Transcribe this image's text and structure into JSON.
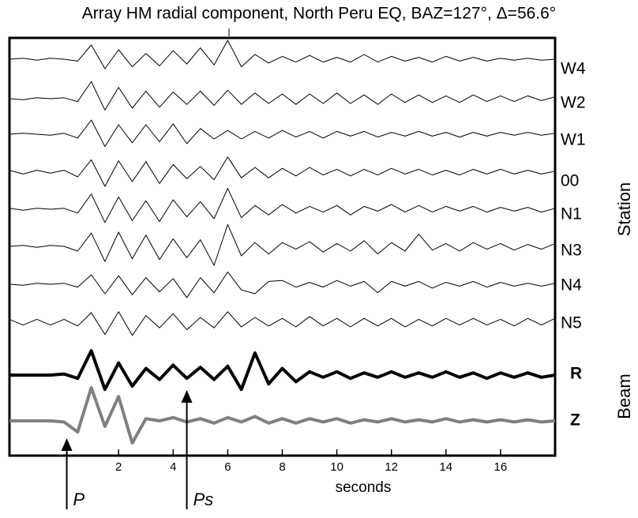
{
  "chart_data": {
    "type": "seismogram",
    "title": "Array HM radial component, North Peru EQ, BAZ=127°, Δ=56.6°",
    "xlabel": "seconds",
    "station_label": "Station",
    "beam_label": "Beam",
    "xlim": [
      -2,
      18
    ],
    "xticks": [
      2,
      4,
      6,
      8,
      10,
      12,
      14,
      16
    ],
    "x": [
      -2,
      -1.5,
      -1,
      -0.5,
      0,
      0.5,
      1,
      1.5,
      2,
      2.5,
      3,
      3.5,
      4,
      4.5,
      5,
      5.5,
      6,
      6.5,
      7,
      7.5,
      8,
      8.5,
      9,
      9.5,
      10,
      10.5,
      11,
      11.5,
      12,
      12.5,
      13,
      13.5,
      14,
      14.5,
      15,
      15.5,
      16,
      16.5,
      17,
      17.5,
      18
    ],
    "series": [
      {
        "name": "W4",
        "color": "#000000",
        "width": 1,
        "values": [
          0,
          0.1,
          -0.1,
          0.1,
          0,
          -0.2,
          1.5,
          -1,
          1,
          -0.8,
          0.6,
          -0.7,
          0.9,
          -0.5,
          1.2,
          -0.6,
          2,
          -0.8,
          0.5,
          -0.4,
          0.3,
          -0.3,
          0.4,
          -0.3,
          0.2,
          -0.3,
          0.5,
          -0.3,
          0.3,
          -0.2,
          0.2,
          -0.3,
          0.3,
          -0.2,
          0.2,
          -0.2,
          0.1,
          -0.1,
          0.1,
          -0.1,
          0
        ]
      },
      {
        "name": "W2",
        "color": "#000000",
        "width": 1,
        "values": [
          0,
          -0.1,
          0.1,
          0,
          0.1,
          -0.3,
          1.8,
          -1.2,
          1.2,
          -1,
          0.8,
          -0.9,
          0.7,
          -0.6,
          0.8,
          -0.7,
          0.9,
          -0.6,
          0.6,
          -0.5,
          0.5,
          -0.6,
          0.5,
          -0.5,
          0.6,
          -0.5,
          0.4,
          -0.6,
          0.5,
          -0.4,
          0.4,
          -0.4,
          0.3,
          -0.4,
          0.4,
          -0.3,
          0.3,
          -0.3,
          0.3,
          -0.2,
          0.2
        ]
      },
      {
        "name": "W1",
        "color": "#000000",
        "width": 1,
        "values": [
          0,
          0.1,
          0,
          -0.1,
          0.1,
          -0.4,
          1.5,
          -1.3,
          1,
          -0.9,
          1,
          -0.8,
          1.1,
          -1,
          0.6,
          -0.5,
          0.4,
          -0.5,
          0.3,
          -0.4,
          0.4,
          -0.3,
          0.3,
          -0.4,
          0.3,
          -0.2,
          0.3,
          -0.3,
          0.2,
          -0.2,
          0.3,
          -0.2,
          0.2,
          -0.3,
          0.2,
          -0.2,
          0.2,
          -0.1,
          0.2,
          -0.1,
          0.1
        ]
      },
      {
        "name": "00",
        "color": "#000000",
        "width": 1,
        "values": [
          0.2,
          -0.2,
          0.2,
          -0.1,
          0.2,
          -0.5,
          1.3,
          -1.5,
          1.2,
          -1,
          1.1,
          -1.2,
          0.8,
          -0.7,
          0.6,
          -0.8,
          1.6,
          -0.6,
          0.5,
          -0.6,
          0.4,
          -0.4,
          0.5,
          -0.3,
          0.3,
          -0.4,
          0.3,
          -0.3,
          0.4,
          -0.2,
          0.3,
          -0.3,
          0.2,
          -0.3,
          0.3,
          -0.2,
          0.3,
          -0.2,
          0.2,
          -0.2,
          0.1
        ]
      },
      {
        "name": "N1",
        "color": "#000000",
        "width": 1,
        "values": [
          0.1,
          -0.1,
          0.1,
          0,
          0.1,
          -0.4,
          1.6,
          -1.4,
          1.3,
          -1.2,
          0.9,
          -1.3,
          1,
          -0.8,
          0.8,
          -1,
          2.2,
          -0.9,
          0.4,
          -0.6,
          0.5,
          -0.4,
          0.3,
          -0.3,
          0.4,
          -0.6,
          0.3,
          -0.2,
          0.5,
          -0.3,
          0.4,
          -0.3,
          0.3,
          -0.2,
          0.3,
          -0.3,
          0.2,
          -0.2,
          0.2,
          -0.3,
          0.1
        ]
      },
      {
        "name": "N3",
        "color": "#000000",
        "width": 1,
        "values": [
          0,
          0.1,
          -0.1,
          0.1,
          0,
          -0.5,
          1.4,
          -1.6,
          1.5,
          -1.3,
          1.2,
          -1.4,
          0.8,
          -1.2,
          0.7,
          -2,
          2.3,
          -1,
          0.4,
          -0.8,
          0.4,
          -0.3,
          0.5,
          -0.6,
          0.3,
          -0.5,
          0.6,
          -0.8,
          0.4,
          -0.5,
          1.3,
          -0.4,
          0.3,
          -0.5,
          0.4,
          -0.3,
          0.3,
          -0.4,
          0.2,
          -0.3,
          0.3
        ]
      },
      {
        "name": "N4",
        "color": "#000000",
        "width": 1,
        "values": [
          0,
          -0.1,
          0.1,
          0,
          0.1,
          -0.3,
          1,
          -1,
          0.9,
          -1.1,
          0.7,
          -0.8,
          0.6,
          -1.4,
          0.7,
          -0.9,
          1.3,
          -0.6,
          -1,
          0.3,
          0.4,
          -0.3,
          0.2,
          -0.3,
          0.4,
          -0.2,
          0.3,
          -0.9,
          0.3,
          -0.2,
          0.3,
          -0.4,
          0.2,
          -0.2,
          0.3,
          -0.3,
          0.2,
          -0.2,
          0.1,
          -0.2,
          0.1
        ]
      },
      {
        "name": "N5",
        "color": "#000000",
        "width": 1,
        "values": [
          0.3,
          -0.3,
          0.3,
          -0.3,
          0.3,
          -0.4,
          1,
          -1.3,
          1.1,
          -1.4,
          0.7,
          -0.6,
          0.9,
          -0.8,
          0.5,
          -0.6,
          1.1,
          -0.5,
          0.5,
          -0.4,
          0.4,
          -0.5,
          0.6,
          -0.4,
          0.4,
          -0.5,
          0.4,
          -0.4,
          0.4,
          -0.5,
          0.3,
          -0.4,
          0.4,
          -0.3,
          0.4,
          -0.3,
          0.3,
          -0.4,
          0.4,
          -0.3,
          0.4
        ]
      },
      {
        "name": "R",
        "color": "#000000",
        "width": 4,
        "values": [
          0,
          0,
          0,
          0,
          0.1,
          -0.3,
          2.2,
          -1.3,
          1.1,
          -1,
          0.6,
          -0.4,
          0.9,
          -0.3,
          0.7,
          -0.4,
          0.8,
          -1.3,
          2,
          -0.8,
          0.6,
          -0.6,
          0.3,
          -0.2,
          0.3,
          -0.3,
          0.2,
          -0.2,
          0.3,
          -0.2,
          0.2,
          -0.2,
          0.3,
          -0.2,
          0.2,
          -0.3,
          0.2,
          -0.2,
          0.2,
          -0.2,
          0
        ]
      },
      {
        "name": "Z",
        "color": "#808080",
        "width": 4,
        "values": [
          0,
          0,
          0,
          0,
          -0.1,
          -1,
          3,
          -0.5,
          2.2,
          -2,
          0.2,
          0,
          0.3,
          -0.1,
          0.2,
          -0.2,
          0.3,
          -0.1,
          0.4,
          -0.2,
          0.2,
          -0.2,
          0.2,
          -0.1,
          0.2,
          -0.2,
          0.1,
          -0.1,
          0.2,
          -0.1,
          0.1,
          -0.1,
          0.2,
          -0.1,
          0.1,
          -0.1,
          0.1,
          -0.1,
          0.1,
          -0.1,
          0
        ]
      }
    ],
    "annotations": [
      {
        "text": "P",
        "x": 0.1
      },
      {
        "text": "Ps",
        "x": 4.5
      }
    ]
  }
}
